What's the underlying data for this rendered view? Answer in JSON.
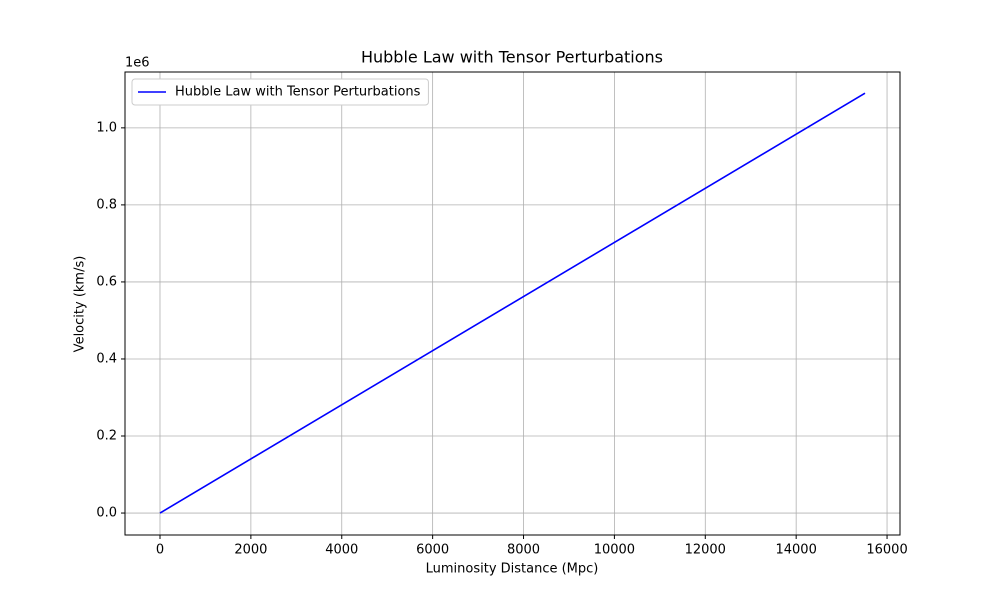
{
  "chart_data": {
    "type": "line",
    "title": "Hubble Law with Tensor Perturbations",
    "xlabel": "Luminosity Distance (Mpc)",
    "ylabel": "Velocity (km/s)",
    "y_offset_label": "1e6",
    "x": [
      0,
      15515
    ],
    "series": [
      {
        "name": "Hubble Law with Tensor Perturbations",
        "color": "#0000ff",
        "values": [
          0,
          1.09
        ]
      }
    ],
    "xlim": [
      -770,
      16285
    ],
    "ylim": [
      -0.057,
      1.145
    ],
    "xticks": [
      0,
      2000,
      4000,
      6000,
      8000,
      10000,
      12000,
      14000,
      16000
    ],
    "yticks": [
      {
        "value": 0,
        "label": "0.0"
      },
      {
        "value": 0.2,
        "label": "0.2"
      },
      {
        "value": 0.4,
        "label": "0.4"
      },
      {
        "value": 0.6,
        "label": "0.6"
      },
      {
        "value": 0.8,
        "label": "0.8"
      },
      {
        "value": 1.0,
        "label": "1.0"
      }
    ],
    "grid": true,
    "legend": "upper-left"
  }
}
